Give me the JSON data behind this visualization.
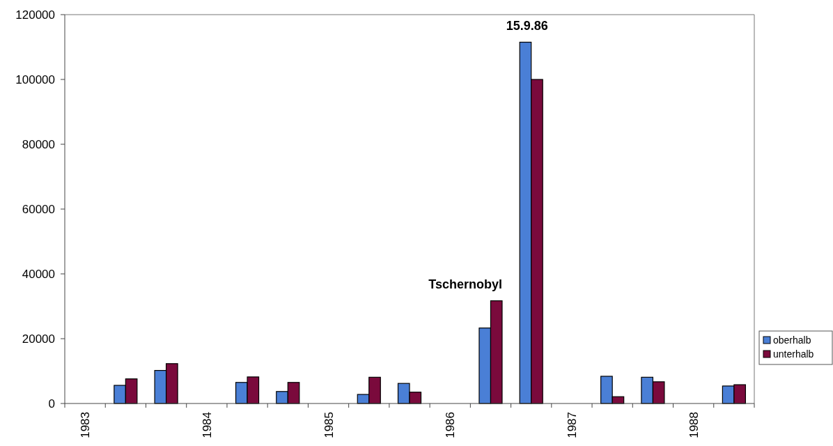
{
  "chart_data": {
    "type": "bar",
    "categories": [
      "1983",
      null,
      null,
      "1984",
      null,
      null,
      "1985",
      null,
      null,
      "1986",
      null,
      null,
      "1987",
      null,
      null,
      "1988",
      null
    ],
    "series": [
      {
        "name": "oberhalb",
        "color": "#4a7fd6",
        "values": [
          null,
          5600,
          10200,
          null,
          6500,
          3700,
          null,
          2800,
          6200,
          null,
          23300,
          111500,
          null,
          8400,
          8100,
          null,
          5400
        ]
      },
      {
        "name": "unterhalb",
        "color": "#7a0a3c",
        "values": [
          null,
          7600,
          12300,
          null,
          8200,
          6500,
          null,
          8100,
          3500,
          null,
          31700,
          100000,
          null,
          2100,
          6700,
          null,
          5800
        ]
      }
    ],
    "ylim": [
      0,
      120000
    ],
    "yticks": [
      0,
      20000,
      40000,
      60000,
      80000,
      100000,
      120000
    ],
    "annotations": [
      "Tschernobyl",
      "15.9.86"
    ],
    "legend": "right",
    "grid": false
  }
}
